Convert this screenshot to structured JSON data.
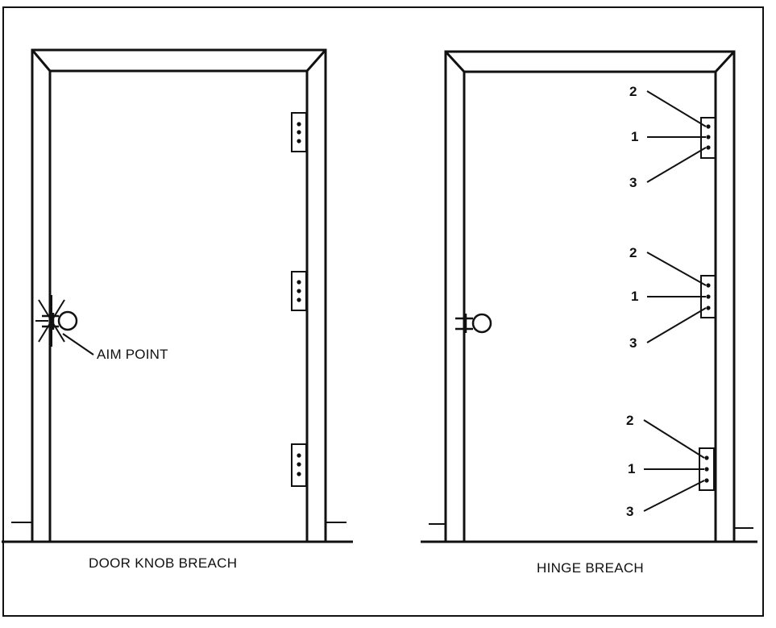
{
  "left_panel": {
    "caption": "DOOR KNOB BREACH",
    "aim_label": "AIM POINT"
  },
  "right_panel": {
    "caption": "HINGE BREACH",
    "hinges": [
      {
        "top_label": "2",
        "middle_label": "1",
        "bottom_label": "3"
      },
      {
        "top_label": "2",
        "middle_label": "1",
        "bottom_label": "3"
      },
      {
        "top_label": "2",
        "middle_label": "1",
        "bottom_label": "3"
      }
    ]
  },
  "colors": {
    "ink": "#111111",
    "paper": "#ffffff"
  }
}
